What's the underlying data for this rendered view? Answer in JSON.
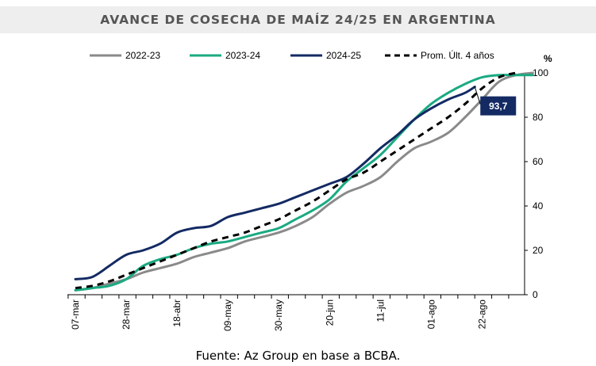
{
  "chart_data": {
    "type": "line",
    "title": "AVANCE DE COSECHA DE MAÍZ 24/25 EN ARGENTINA",
    "source": "Fuente: Az Group en base a BCBA.",
    "unit_label": "%",
    "ylim": [
      0,
      100
    ],
    "y_ticks": [
      "0",
      "20",
      "40",
      "60",
      "80",
      "100"
    ],
    "x_ticks": [
      "07-mar",
      "28-mar",
      "18-abr",
      "09-may",
      "30-may",
      "20-jun",
      "11-jul",
      "01-ago",
      "22-ago"
    ],
    "x_start": "07-mar",
    "legend_position": "top",
    "grid": false,
    "annotation": {
      "label": "93,7",
      "series": "2024-25",
      "x_days": 165,
      "y": 93.7
    },
    "series": [
      {
        "name": "2022-23",
        "color": "#8a8a8a",
        "dash": "solid",
        "points": [
          [
            0,
            2
          ],
          [
            7,
            3
          ],
          [
            14,
            5
          ],
          [
            21,
            7
          ],
          [
            28,
            10
          ],
          [
            35,
            12
          ],
          [
            42,
            14
          ],
          [
            49,
            17
          ],
          [
            56,
            19
          ],
          [
            63,
            21
          ],
          [
            70,
            24
          ],
          [
            77,
            26
          ],
          [
            84,
            28
          ],
          [
            91,
            31
          ],
          [
            98,
            35
          ],
          [
            105,
            41
          ],
          [
            112,
            46
          ],
          [
            119,
            49
          ],
          [
            126,
            53
          ],
          [
            133,
            60
          ],
          [
            140,
            66
          ],
          [
            147,
            69
          ],
          [
            154,
            73
          ],
          [
            161,
            80
          ],
          [
            168,
            88
          ],
          [
            175,
            96
          ],
          [
            182,
            99
          ],
          [
            189,
            100
          ]
        ]
      },
      {
        "name": "2023-24",
        "color": "#1aaa82",
        "dash": "solid",
        "points": [
          [
            0,
            2
          ],
          [
            7,
            3
          ],
          [
            14,
            4
          ],
          [
            21,
            7
          ],
          [
            28,
            13
          ],
          [
            35,
            16
          ],
          [
            42,
            18
          ],
          [
            49,
            21
          ],
          [
            56,
            23
          ],
          [
            63,
            24
          ],
          [
            70,
            26
          ],
          [
            77,
            28
          ],
          [
            84,
            30
          ],
          [
            91,
            34
          ],
          [
            98,
            38
          ],
          [
            105,
            43
          ],
          [
            112,
            51
          ],
          [
            119,
            57
          ],
          [
            126,
            63
          ],
          [
            133,
            71
          ],
          [
            140,
            79
          ],
          [
            147,
            86
          ],
          [
            154,
            91
          ],
          [
            161,
            95
          ],
          [
            168,
            98
          ],
          [
            175,
            99
          ],
          [
            182,
            99
          ],
          [
            189,
            99
          ]
        ]
      },
      {
        "name": "2024-25",
        "color": "#132a63",
        "dash": "solid",
        "points": [
          [
            0,
            7
          ],
          [
            7,
            8
          ],
          [
            14,
            13
          ],
          [
            21,
            18
          ],
          [
            28,
            20
          ],
          [
            35,
            23
          ],
          [
            42,
            28
          ],
          [
            49,
            30
          ],
          [
            56,
            31
          ],
          [
            63,
            35
          ],
          [
            70,
            37
          ],
          [
            77,
            39
          ],
          [
            84,
            41
          ],
          [
            91,
            44
          ],
          [
            98,
            47
          ],
          [
            105,
            50
          ],
          [
            112,
            53
          ],
          [
            119,
            59
          ],
          [
            126,
            66
          ],
          [
            133,
            72
          ],
          [
            140,
            79
          ],
          [
            147,
            84
          ],
          [
            154,
            88
          ],
          [
            161,
            91
          ],
          [
            165,
            93.7
          ]
        ]
      },
      {
        "name": "Prom. Últ. 4 años",
        "color": "#000000",
        "dash": "dashed",
        "points": [
          [
            0,
            3
          ],
          [
            7,
            4
          ],
          [
            14,
            6
          ],
          [
            21,
            9
          ],
          [
            28,
            12
          ],
          [
            35,
            15
          ],
          [
            42,
            18
          ],
          [
            49,
            21
          ],
          [
            56,
            24
          ],
          [
            63,
            26
          ],
          [
            70,
            28
          ],
          [
            77,
            31
          ],
          [
            84,
            34
          ],
          [
            91,
            38
          ],
          [
            98,
            42
          ],
          [
            105,
            47
          ],
          [
            112,
            52
          ],
          [
            119,
            55
          ],
          [
            126,
            60
          ],
          [
            133,
            65
          ],
          [
            140,
            70
          ],
          [
            147,
            75
          ],
          [
            154,
            80
          ],
          [
            161,
            86
          ],
          [
            168,
            93
          ],
          [
            175,
            98
          ],
          [
            182,
            100
          ]
        ]
      }
    ]
  }
}
